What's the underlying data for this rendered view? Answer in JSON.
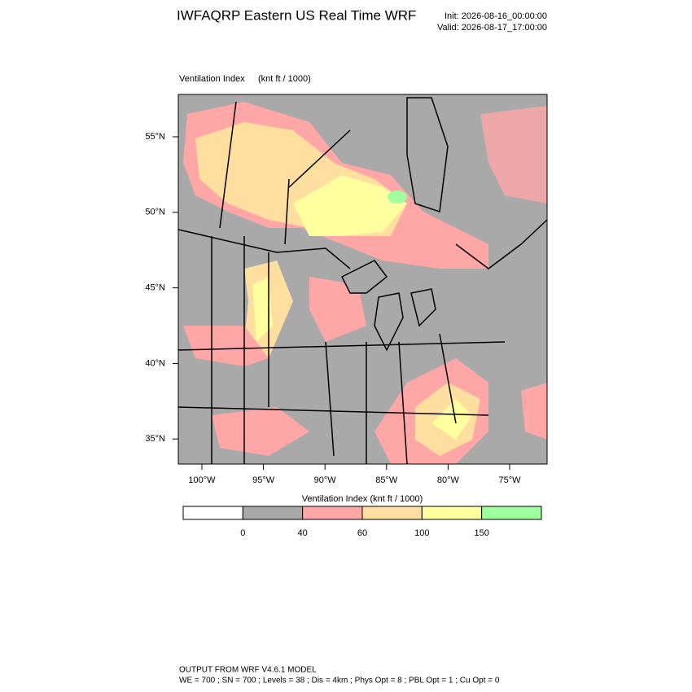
{
  "header": {
    "title": "IWFAQRP Eastern US Real Time WRF",
    "init": "Init: 2026-08-16_00:00:00",
    "valid": "Valid: 2026-08-17_17:00:00"
  },
  "map": {
    "field": "Ventilation Index",
    "units": "(knt ft / 1000)",
    "lat_labels": [
      "55°N",
      "50°N",
      "45°N",
      "40°N",
      "35°N"
    ],
    "lon_labels": [
      "100°W",
      "95°W",
      "90°W",
      "85°W",
      "80°W",
      "75°W"
    ]
  },
  "colorbar": {
    "title": "Ventilation Index  (knt ft / 1000)",
    "colors": [
      "#ffffff",
      "#a9a9a9",
      "#ffa6a6",
      "#ffdf9f",
      "#ffff9f",
      "#9fff9f"
    ],
    "levels": [
      0,
      40,
      60,
      100,
      150
    ]
  },
  "footer": {
    "line1": "OUTPUT FROM WRF V4.6.1 MODEL",
    "line2": "WE = 700 ; SN = 700 ; Levels = 38 ; Dis = 4km ; Phys Opt = 8 ; PBL Opt = 1 ; Cu Opt = 0"
  }
}
